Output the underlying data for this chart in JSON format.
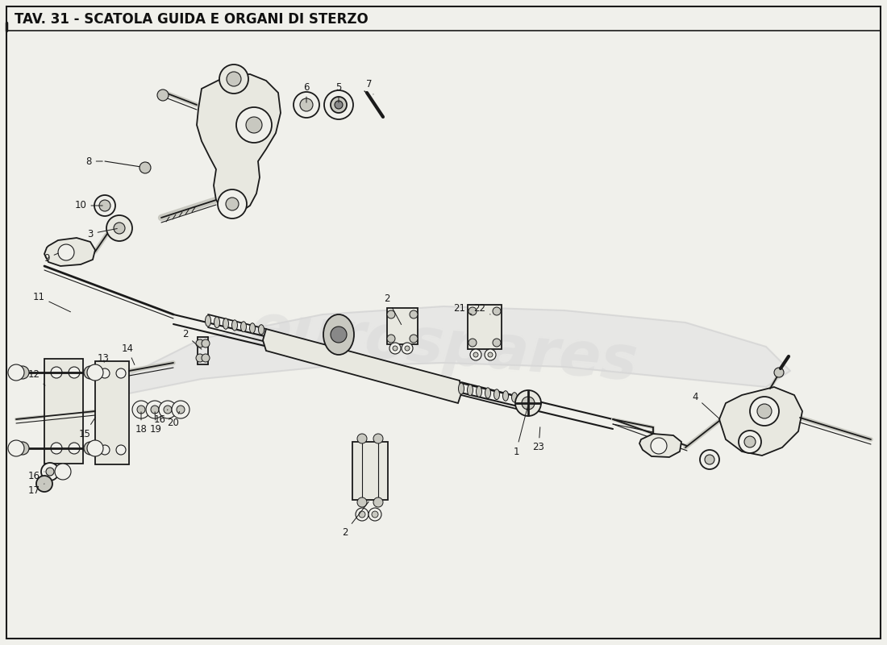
{
  "title": "TAV. 31 - SCATOLA GUIDA E ORGANI DI STERZO",
  "bg_color": "#f0f0eb",
  "border_color": "#1a1a1a",
  "title_color": "#111111",
  "watermark_text": "eurospares",
  "watermark_color": "#d8d8d8",
  "watermark_alpha": 0.5,
  "title_fontsize": 12,
  "annotation_fontsize": 8.5,
  "fig_width": 11.0,
  "fig_height": 8.0,
  "dpi": 100,
  "line_color": "#1a1a1a",
  "fill_light": "#e8e8e0",
  "fill_mid": "#c8c8c0",
  "fill_dark": "#888888"
}
